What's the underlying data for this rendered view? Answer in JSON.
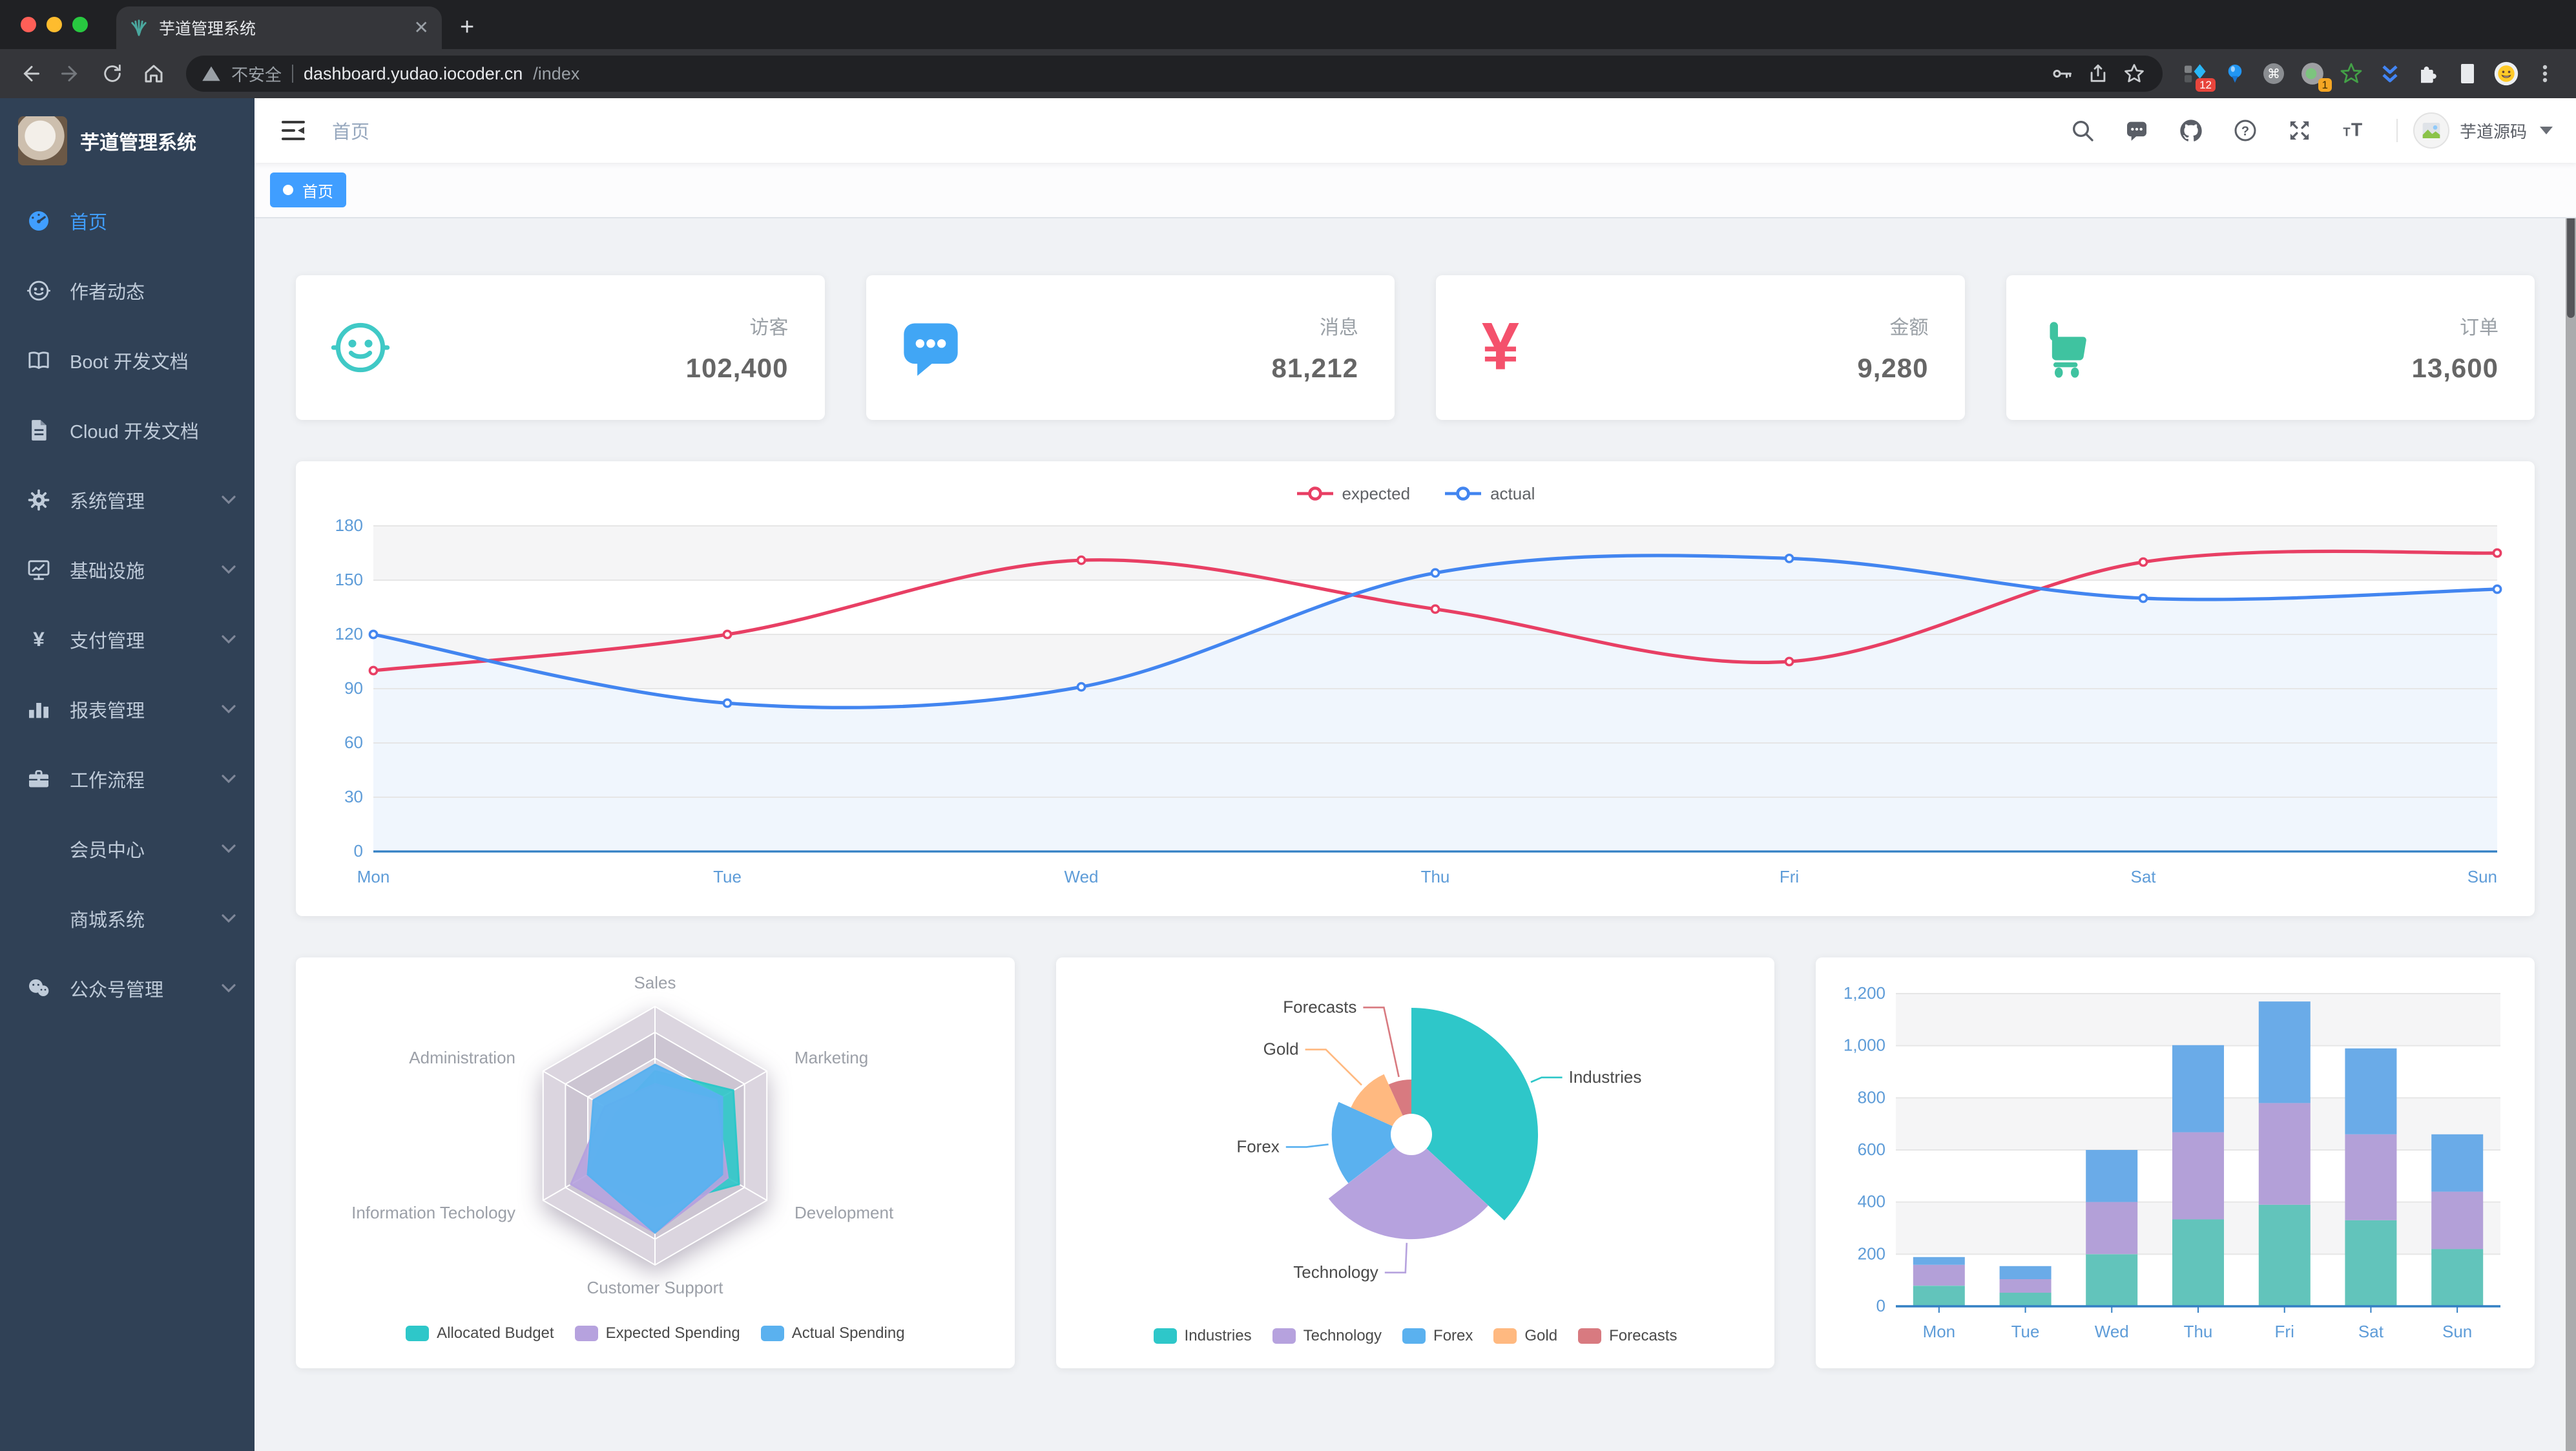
{
  "browser": {
    "tab_title": "芋道管理系统",
    "security_label": "不安全",
    "url_host": "dashboard.yudao.iocoder.cn",
    "url_path": "/index",
    "ext_badge_1": "12",
    "ext_badge_2": "1"
  },
  "sidebar": {
    "title": "芋道管理系统",
    "items": [
      {
        "label": "首页",
        "icon": "dashboard",
        "active": true,
        "arrow": false,
        "indent": false
      },
      {
        "label": "作者动态",
        "icon": "people",
        "active": false,
        "arrow": false,
        "indent": false
      },
      {
        "label": "Boot 开发文档",
        "icon": "book",
        "active": false,
        "arrow": false,
        "indent": false
      },
      {
        "label": "Cloud 开发文档",
        "icon": "document",
        "active": false,
        "arrow": false,
        "indent": false
      },
      {
        "label": "系统管理",
        "icon": "gear",
        "active": false,
        "arrow": true,
        "indent": false
      },
      {
        "label": "基础设施",
        "icon": "monitor",
        "active": false,
        "arrow": true,
        "indent": false
      },
      {
        "label": "支付管理",
        "icon": "yen",
        "active": false,
        "arrow": true,
        "indent": false
      },
      {
        "label": "报表管理",
        "icon": "chart",
        "active": false,
        "arrow": true,
        "indent": false
      },
      {
        "label": "工作流程",
        "icon": "briefcase",
        "active": false,
        "arrow": true,
        "indent": false
      },
      {
        "label": "会员中心",
        "icon": "none",
        "active": false,
        "arrow": true,
        "indent": true
      },
      {
        "label": "商城系统",
        "icon": "none",
        "active": false,
        "arrow": true,
        "indent": true
      },
      {
        "label": "公众号管理",
        "icon": "wechat",
        "active": false,
        "arrow": true,
        "indent": false
      }
    ]
  },
  "header": {
    "breadcrumb": "首页",
    "username": "芋道源码"
  },
  "tags": [
    {
      "label": "首页",
      "active": true
    }
  ],
  "stat_cards": [
    {
      "label": "访客",
      "value": "102,400",
      "icon": "people",
      "color": "#40c9c6"
    },
    {
      "label": "消息",
      "value": "81,212",
      "icon": "message",
      "color": "#41a6f5"
    },
    {
      "label": "金额",
      "value": "9,280",
      "icon": "money",
      "color": "#f4516c"
    },
    {
      "label": "订单",
      "value": "13,600",
      "icon": "cart",
      "color": "#3fc3a0"
    }
  ],
  "colors": {
    "accent": "#409EFF",
    "sidebar_bg": "#304156",
    "sidebar_text": "#BFCBD9",
    "page_bg": "#F0F2F5",
    "axis_label": "#5E9CD8",
    "axis_line": "#3380C4",
    "split_band": "#f5f5f6"
  },
  "chart_data": [
    {
      "id": "line",
      "type": "line",
      "x": [
        "Mon",
        "Tue",
        "Wed",
        "Thu",
        "Fri",
        "Sat",
        "Sun"
      ],
      "yticks": [
        0,
        30,
        60,
        90,
        120,
        150,
        180
      ],
      "ylim": [
        0,
        180
      ],
      "legend_position": "top",
      "grid": "split-area",
      "series": [
        {
          "name": "expected",
          "color": "#E83F64",
          "values": [
            100,
            120,
            161,
            134,
            105,
            160,
            165
          ]
        },
        {
          "name": "actual",
          "color": "#4285F0",
          "area_color": "#EFF5FD",
          "values": [
            120,
            82,
            91,
            154,
            162,
            140,
            145
          ]
        }
      ]
    },
    {
      "id": "radar",
      "type": "radar",
      "legend_position": "bottom",
      "indicators": [
        {
          "name": "Sales",
          "max": 10000
        },
        {
          "name": "Administration",
          "max": 20000
        },
        {
          "name": "Information Techology",
          "max": 20000
        },
        {
          "name": "Customer Support",
          "max": 20000
        },
        {
          "name": "Development",
          "max": 20000
        },
        {
          "name": "Marketing",
          "max": 20000
        }
      ],
      "series": [
        {
          "name": "Allocated Budget",
          "color": "#2EC7C9",
          "values": [
            5000,
            7000,
            12000,
            11000,
            15000,
            14000
          ]
        },
        {
          "name": "Expected Spending",
          "color": "#B6A2DE",
          "values": [
            4000,
            9000,
            15000,
            15000,
            13000,
            11000
          ]
        },
        {
          "name": "Actual Spending",
          "color": "#5AB1EF",
          "values": [
            5500,
            11000,
            12000,
            15000,
            12000,
            12000
          ]
        }
      ]
    },
    {
      "id": "pie",
      "type": "pie",
      "rose": true,
      "legend_position": "bottom",
      "slices": [
        {
          "name": "Industries",
          "value": 320,
          "color": "#2EC7C9"
        },
        {
          "name": "Technology",
          "value": 240,
          "color": "#B6A2DE"
        },
        {
          "name": "Forex",
          "value": 149,
          "color": "#5AB1EF"
        },
        {
          "name": "Gold",
          "value": 100,
          "color": "#FFB980"
        },
        {
          "name": "Forecasts",
          "value": 59,
          "color": "#D87A80"
        }
      ]
    },
    {
      "id": "bar",
      "type": "bar",
      "stacked": true,
      "x": [
        "Mon",
        "Tue",
        "Wed",
        "Thu",
        "Fri",
        "Sat",
        "Sun"
      ],
      "yticks": [
        0,
        200,
        400,
        600,
        800,
        1000,
        1200
      ],
      "ylim": [
        0,
        1200
      ],
      "grid": "split-area",
      "series": [
        {
          "color": "#62C4BB",
          "values": [
            79,
            52,
            200,
            334,
            390,
            330,
            220
          ]
        },
        {
          "color": "#B3A0D8",
          "values": [
            80,
            52,
            200,
            334,
            390,
            330,
            220
          ]
        },
        {
          "color": "#6AABE8",
          "values": [
            30,
            50,
            200,
            334,
            390,
            330,
            220
          ]
        }
      ]
    }
  ]
}
